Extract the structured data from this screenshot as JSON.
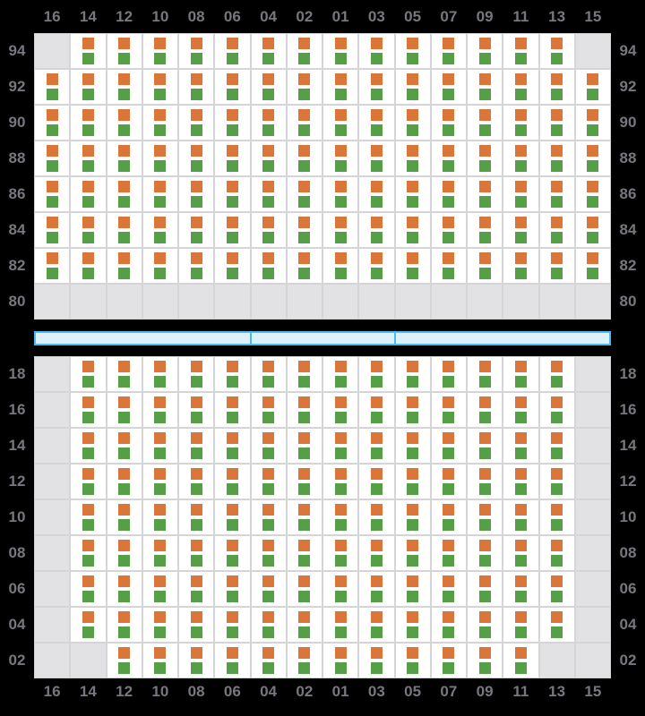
{
  "colors": {
    "background": "#000000",
    "upper_marker": "#DB763A",
    "lower_marker": "#55A046",
    "cell_available": "#FFFFFF",
    "cell_empty": "#E2E2E4",
    "grid_line": "#D5D5D8",
    "axis_label": "#77777F",
    "aisle_fill": "#DDF0FB",
    "aisle_border": "#4ABBEE"
  },
  "columns": [
    "16",
    "14",
    "12",
    "10",
    "08",
    "06",
    "04",
    "02",
    "01",
    "03",
    "05",
    "07",
    "09",
    "11",
    "13",
    "15"
  ],
  "upper_deck": {
    "name": "upper-deck",
    "rows": [
      {
        "label": "94",
        "cells": [
          0,
          1,
          1,
          1,
          1,
          1,
          1,
          1,
          1,
          1,
          1,
          1,
          1,
          1,
          1,
          0
        ]
      },
      {
        "label": "92",
        "cells": [
          1,
          1,
          1,
          1,
          1,
          1,
          1,
          1,
          1,
          1,
          1,
          1,
          1,
          1,
          1,
          1
        ]
      },
      {
        "label": "90",
        "cells": [
          1,
          1,
          1,
          1,
          1,
          1,
          1,
          1,
          1,
          1,
          1,
          1,
          1,
          1,
          1,
          1
        ]
      },
      {
        "label": "88",
        "cells": [
          1,
          1,
          1,
          1,
          1,
          1,
          1,
          1,
          1,
          1,
          1,
          1,
          1,
          1,
          1,
          1
        ]
      },
      {
        "label": "86",
        "cells": [
          1,
          1,
          1,
          1,
          1,
          1,
          1,
          1,
          1,
          1,
          1,
          1,
          1,
          1,
          1,
          1
        ]
      },
      {
        "label": "84",
        "cells": [
          1,
          1,
          1,
          1,
          1,
          1,
          1,
          1,
          1,
          1,
          1,
          1,
          1,
          1,
          1,
          1
        ]
      },
      {
        "label": "82",
        "cells": [
          1,
          1,
          1,
          1,
          1,
          1,
          1,
          1,
          1,
          1,
          1,
          1,
          1,
          1,
          1,
          1
        ]
      },
      {
        "label": "80",
        "cells": [
          0,
          0,
          0,
          0,
          0,
          0,
          0,
          0,
          0,
          0,
          0,
          0,
          0,
          0,
          0,
          0
        ]
      }
    ]
  },
  "lower_deck": {
    "name": "lower-deck",
    "rows": [
      {
        "label": "18",
        "cells": [
          0,
          1,
          1,
          1,
          1,
          1,
          1,
          1,
          1,
          1,
          1,
          1,
          1,
          1,
          1,
          0
        ]
      },
      {
        "label": "16",
        "cells": [
          0,
          1,
          1,
          1,
          1,
          1,
          1,
          1,
          1,
          1,
          1,
          1,
          1,
          1,
          1,
          0
        ]
      },
      {
        "label": "14",
        "cells": [
          0,
          1,
          1,
          1,
          1,
          1,
          1,
          1,
          1,
          1,
          1,
          1,
          1,
          1,
          1,
          0
        ]
      },
      {
        "label": "12",
        "cells": [
          0,
          1,
          1,
          1,
          1,
          1,
          1,
          1,
          1,
          1,
          1,
          1,
          1,
          1,
          1,
          0
        ]
      },
      {
        "label": "10",
        "cells": [
          0,
          1,
          1,
          1,
          1,
          1,
          1,
          1,
          1,
          1,
          1,
          1,
          1,
          1,
          1,
          0
        ]
      },
      {
        "label": "08",
        "cells": [
          0,
          1,
          1,
          1,
          1,
          1,
          1,
          1,
          1,
          1,
          1,
          1,
          1,
          1,
          1,
          0
        ]
      },
      {
        "label": "06",
        "cells": [
          0,
          1,
          1,
          1,
          1,
          1,
          1,
          1,
          1,
          1,
          1,
          1,
          1,
          1,
          1,
          0
        ]
      },
      {
        "label": "04",
        "cells": [
          0,
          1,
          1,
          1,
          1,
          1,
          1,
          1,
          1,
          1,
          1,
          1,
          1,
          1,
          1,
          0
        ]
      },
      {
        "label": "02",
        "cells": [
          0,
          0,
          1,
          1,
          1,
          1,
          1,
          1,
          1,
          1,
          1,
          1,
          1,
          1,
          0,
          0
        ]
      }
    ]
  },
  "aisle": {
    "segment_flex": [
      6,
      4,
      6
    ]
  }
}
